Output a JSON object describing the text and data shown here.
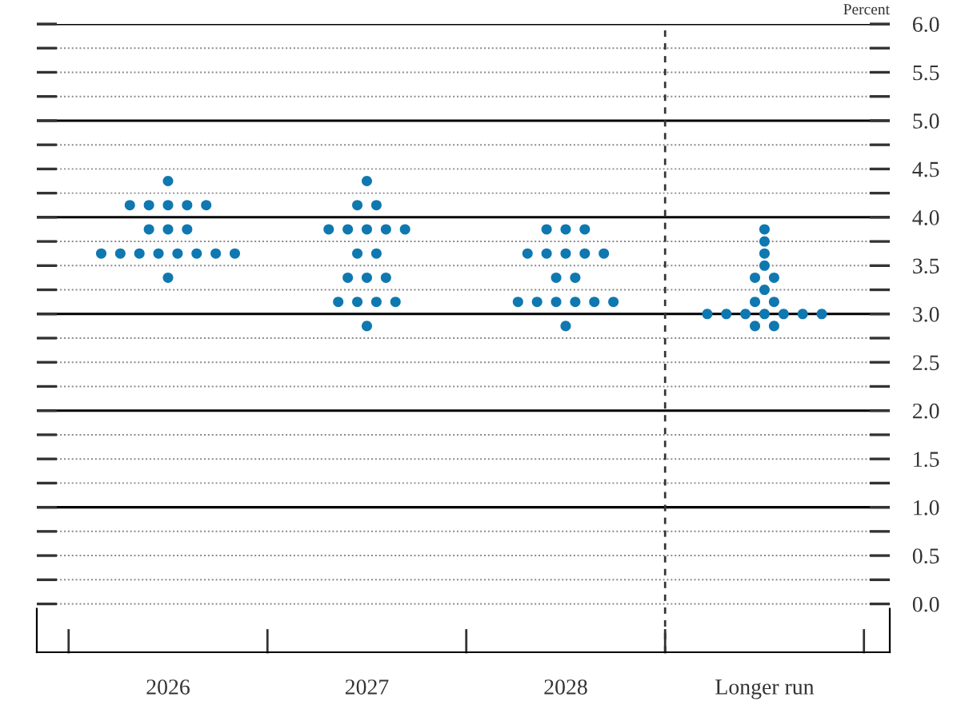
{
  "chart_data": {
    "type": "scatter",
    "ylabel": "Percent",
    "categories": [
      "2026",
      "2027",
      "2028",
      "Longer run"
    ],
    "series": [
      {
        "color": "#0f78b0",
        "values": [
          4.375,
          4.375,
          3.875,
          3.875
        ]
      },
      {
        "color": "#0f78b0",
        "values": [
          4.125,
          4.125,
          3.875,
          3.75
        ]
      },
      {
        "color": "#0f78b0",
        "values": [
          4.125,
          4.125,
          3.875,
          3.625
        ]
      },
      {
        "color": "#0f78b0",
        "values": [
          4.125,
          3.875,
          3.625,
          3.5
        ]
      },
      {
        "color": "#0f78b0",
        "values": [
          4.125,
          3.875,
          3.625,
          3.375
        ]
      },
      {
        "color": "#0f78b0",
        "values": [
          4.125,
          3.875,
          3.625,
          3.375
        ]
      },
      {
        "color": "#0f78b0",
        "values": [
          3.875,
          3.875,
          3.625,
          3.25
        ]
      },
      {
        "color": "#0f78b0",
        "values": [
          3.875,
          3.875,
          3.625,
          3.125
        ]
      },
      {
        "color": "#0f78b0",
        "values": [
          3.875,
          3.625,
          3.375,
          3.125
        ]
      },
      {
        "color": "#0f78b0",
        "values": [
          3.625,
          3.625,
          3.375,
          3.0
        ]
      },
      {
        "color": "#0f78b0",
        "values": [
          3.625,
          3.375,
          3.125,
          3.0
        ]
      },
      {
        "color": "#0f78b0",
        "values": [
          3.625,
          3.375,
          3.125,
          3.0
        ]
      },
      {
        "color": "#0f78b0",
        "values": [
          3.625,
          3.375,
          3.125,
          3.0
        ]
      },
      {
        "color": "#0f78b0",
        "values": [
          3.625,
          3.125,
          3.125,
          3.0
        ]
      },
      {
        "color": "#0f78b0",
        "values": [
          3.625,
          3.125,
          3.125,
          3.0
        ]
      },
      {
        "color": "#0f78b0",
        "values": [
          3.625,
          3.125,
          3.125,
          3.0
        ]
      },
      {
        "color": "#0f78b0",
        "values": [
          3.625,
          3.125,
          2.875,
          2.875
        ]
      },
      {
        "color": "#0f78b0",
        "values": [
          3.375,
          2.875,
          null,
          2.875
        ]
      }
    ],
    "ylim": [
      -0.5,
      6.0
    ],
    "yticks": [
      {
        "value": 0,
        "label": "0.0"
      },
      {
        "value": 0.25,
        "label": null
      },
      {
        "value": 0.5,
        "label": "0.5"
      },
      {
        "value": 0.75,
        "label": null
      },
      {
        "value": 1,
        "label": "1.0"
      },
      {
        "value": 1.25,
        "label": null
      },
      {
        "value": 1.5,
        "label": "1.5"
      },
      {
        "value": 1.75,
        "label": null
      },
      {
        "value": 2,
        "label": "2.0"
      },
      {
        "value": 2.25,
        "label": null
      },
      {
        "value": 2.5,
        "label": "2.5"
      },
      {
        "value": 2.75,
        "label": null
      },
      {
        "value": 3,
        "label": "3.0"
      },
      {
        "value": 3.25,
        "label": null
      },
      {
        "value": 3.5,
        "label": "3.5"
      },
      {
        "value": 3.75,
        "label": null
      },
      {
        "value": 4,
        "label": "4.0"
      },
      {
        "value": 4.25,
        "label": null
      },
      {
        "value": 4.5,
        "label": "4.5"
      },
      {
        "value": 4.75,
        "label": null
      },
      {
        "value": 5,
        "label": "5.0"
      },
      {
        "value": 5.25,
        "label": null
      },
      {
        "value": 5.5,
        "label": "5.5"
      },
      {
        "value": 5.75,
        "label": null
      },
      {
        "value": 6,
        "label": "6.0"
      }
    ],
    "grid": "y",
    "marker": "circle"
  }
}
